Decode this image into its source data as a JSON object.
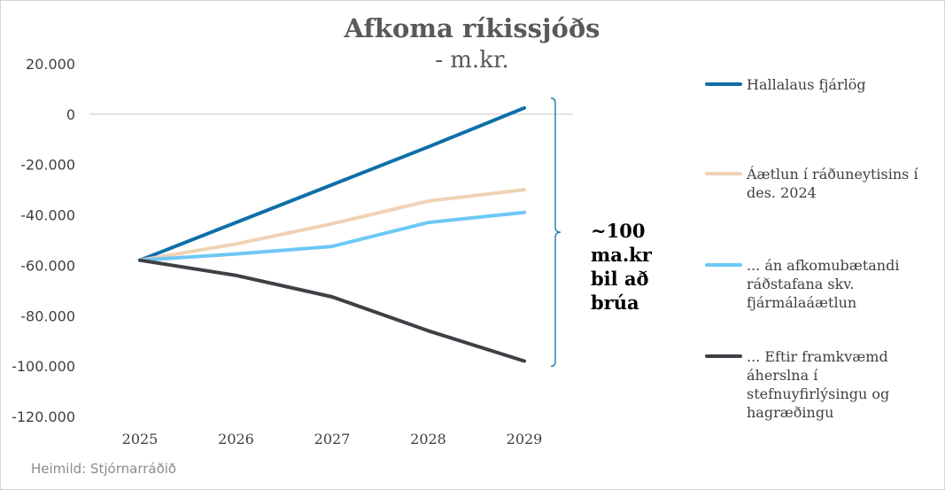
{
  "chart_data": {
    "type": "line",
    "title": "Afkoma ríkissjóðs",
    "subtitle": "- m.kr.",
    "x": [
      "2025",
      "2026",
      "2027",
      "2028",
      "2029"
    ],
    "ylim": [
      -120000,
      20000
    ],
    "yticks": [
      20000,
      0,
      -20000,
      -40000,
      -60000,
      -80000,
      -100000,
      -120000
    ],
    "ytick_labels": [
      "20.000",
      "0",
      "-20.000",
      "-40.000",
      "-60.000",
      "-80.000",
      "-100.000",
      "-120.000"
    ],
    "grid": false,
    "legend_position": "right",
    "series": [
      {
        "name": "Hallalaus fjárlög",
        "legend_lines": [
          "Hallalaus fjárlög"
        ],
        "color": "#0e6fa8",
        "values": [
          -58000,
          -43000,
          -28000,
          -13000,
          2500
        ]
      },
      {
        "name": "Áætlun í ráðuneytisins í des. 2024",
        "legend_lines": [
          "Áætlun í ráðuneytisins í",
          "des. 2024"
        ],
        "color": "#f0d2b4",
        "values": [
          -58000,
          -51500,
          -43500,
          -34500,
          -30000
        ]
      },
      {
        "name": "... án afkomubætandi ráðstafana skv. fjármálaáætlun",
        "legend_lines": [
          "... án afkomubætandi",
          "ráðstafana skv.",
          "fjármálaáætlun"
        ],
        "color": "#6dc8f5",
        "values": [
          -58000,
          -55500,
          -52500,
          -43000,
          -39000
        ]
      },
      {
        "name": "... Eftir framkvæmd áherslna í stefnuyfirlýsingu og hagræðingu",
        "legend_lines": [
          "... Eftir framkvæmd",
          "áherslna í",
          "stefnuyfirlýsingu og",
          "hagræðingu"
        ],
        "color": "#3f3f46",
        "values": [
          -58000,
          -64000,
          -72500,
          -86000,
          -98000
        ]
      }
    ],
    "annotation": {
      "lines": [
        "~100",
        "ma.kr",
        "bil að",
        "brúa"
      ],
      "brace_color": "#0e6fa8"
    }
  },
  "source": "Heimild: Stjórnarráðið"
}
